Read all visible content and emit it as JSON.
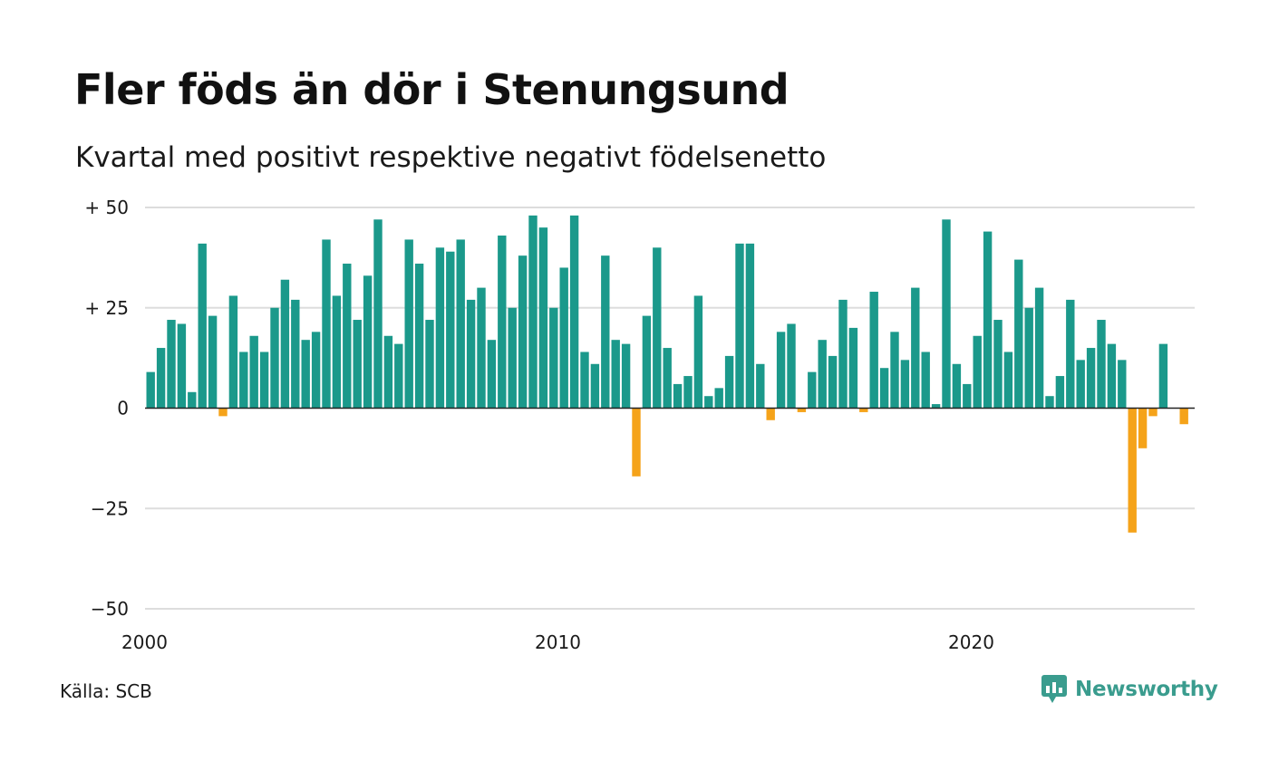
{
  "title": "Fler föds än dör i Stenungsund",
  "subtitle": "Kvartal med positivt respektive negativt födelsenetto",
  "source": "Källa: SCB",
  "brand": {
    "name": "Newsworthy",
    "icon": "newsworthy-logo-icon",
    "color": "#3a9c8e"
  },
  "colors": {
    "positive": "#1b998b",
    "negative": "#f5a31a",
    "grid": "#dddddd",
    "axis": "#222222"
  },
  "chart_data": {
    "type": "bar",
    "x_start": "2000 Q1",
    "xticks": [
      {
        "label": "2000",
        "index": 0
      },
      {
        "label": "2010",
        "index": 40
      },
      {
        "label": "2020",
        "index": 80
      }
    ],
    "yticks": [
      {
        "value": 50,
        "label": "+ 50"
      },
      {
        "value": 25,
        "label": "+ 25"
      },
      {
        "value": 0,
        "label": "0"
      },
      {
        "value": -25,
        "label": "−25"
      },
      {
        "value": -50,
        "label": "−50"
      }
    ],
    "ylim": [
      -50,
      50
    ],
    "grid": true,
    "values": [
      9,
      15,
      22,
      21,
      4,
      41,
      23,
      -2,
      28,
      14,
      18,
      14,
      25,
      32,
      27,
      17,
      19,
      42,
      28,
      36,
      22,
      33,
      47,
      18,
      16,
      42,
      36,
      22,
      40,
      39,
      42,
      27,
      30,
      17,
      43,
      25,
      38,
      48,
      45,
      25,
      35,
      48,
      14,
      11,
      38,
      17,
      16,
      -17,
      23,
      40,
      15,
      6,
      8,
      28,
      3,
      5,
      13,
      41,
      41,
      11,
      -3,
      19,
      21,
      -1,
      9,
      17,
      13,
      27,
      20,
      -1,
      29,
      10,
      19,
      12,
      30,
      14,
      1,
      47,
      11,
      6,
      18,
      44,
      22,
      14,
      37,
      25,
      30,
      3,
      8,
      27,
      12,
      15,
      22,
      16,
      12,
      -31,
      -10,
      -2,
      16,
      0,
      -4
    ]
  }
}
